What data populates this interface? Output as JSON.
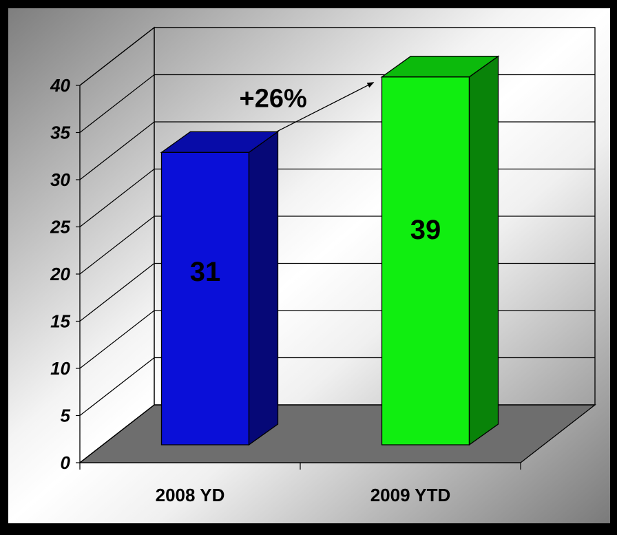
{
  "chart_data": {
    "type": "bar",
    "style": "3d",
    "categories": [
      "2008 YD",
      "2009 YTD"
    ],
    "values": [
      31,
      39
    ],
    "data_labels": [
      "31",
      "39"
    ],
    "bar_colors": [
      "#0a0fd8",
      "#10ee10"
    ],
    "ylim": [
      0,
      40
    ],
    "yticks": [
      0,
      5,
      10,
      15,
      20,
      25,
      30,
      35,
      40
    ],
    "ytick_labels": [
      "0",
      "5",
      "10",
      "15",
      "20",
      "25",
      "30",
      "35",
      "40"
    ],
    "grid": true,
    "annotation": "+26%",
    "title": "",
    "xlabel": "",
    "ylabel": ""
  },
  "colors": {
    "floor": "#6e6e6e",
    "background_light": "#ffffff",
    "background_dark": "#7a7a7a",
    "frame": "#000000"
  }
}
